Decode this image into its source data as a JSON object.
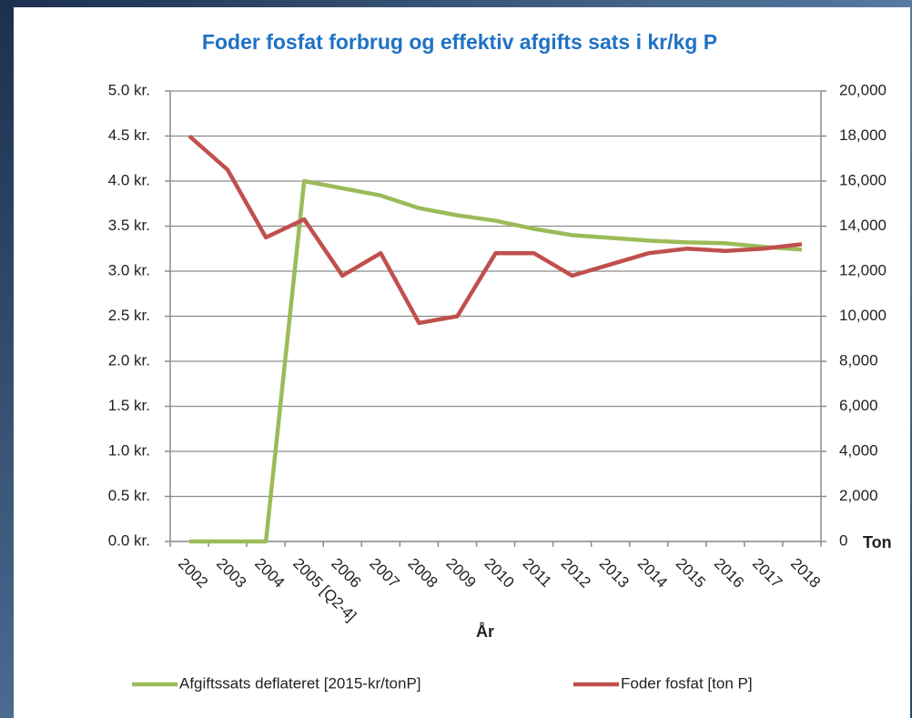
{
  "chart_data": {
    "type": "line",
    "title": "Foder fosfat forbrug og effektiv afgifts sats i kr/kg P",
    "x_label": "År",
    "y2_label": "Ton",
    "categories": [
      "2002",
      "2003",
      "2004",
      "2005 [Q2-4]",
      "2006",
      "2007",
      "2008",
      "2009",
      "2010",
      "2011",
      "2012",
      "2013",
      "2014",
      "2015",
      "2016",
      "2017",
      "2018"
    ],
    "series": [
      {
        "name": "Afgiftssats deflateret [2015-kr/tonP]",
        "color": "#9bbb59",
        "axis": "y",
        "values": [
          0,
          0,
          0,
          4.0,
          3.92,
          3.84,
          3.7,
          3.62,
          3.56,
          3.47,
          3.4,
          3.37,
          3.34,
          3.32,
          3.31,
          3.27,
          3.24
        ]
      },
      {
        "name": "Foder fosfat [ton P]",
        "color": "#c0504d",
        "axis": "y2",
        "values": [
          18000,
          16500,
          13500,
          14300,
          11800,
          12800,
          9700,
          10000,
          12800,
          12800,
          11800,
          12300,
          12800,
          13000,
          12900,
          13000,
          13200
        ]
      }
    ],
    "ylim": [
      0,
      5
    ],
    "yticks": [
      {
        "value": 0,
        "label": "0.0 kr."
      },
      {
        "value": 0.5,
        "label": "0.5 kr."
      },
      {
        "value": 1,
        "label": "1.0 kr."
      },
      {
        "value": 1.5,
        "label": "1.5 kr."
      },
      {
        "value": 2,
        "label": "2.0 kr."
      },
      {
        "value": 2.5,
        "label": "2.5 kr."
      },
      {
        "value": 3,
        "label": "3.0 kr."
      },
      {
        "value": 3.5,
        "label": "3.5 kr."
      },
      {
        "value": 4,
        "label": "4.0 kr."
      },
      {
        "value": 4.5,
        "label": "4.5 kr."
      },
      {
        "value": 5,
        "label": "5.0 kr."
      }
    ],
    "y2lim": [
      0,
      20000
    ],
    "y2ticks": [
      0,
      {
        "value": 2000,
        "label": "2,000"
      },
      {
        "value": 4000,
        "label": "4,000"
      },
      {
        "value": 6000,
        "label": "6,000"
      },
      {
        "value": 8000,
        "label": "8,000"
      },
      {
        "value": 10000,
        "label": "10,000"
      },
      {
        "value": 12000,
        "label": "12,000"
      },
      {
        "value": 14000,
        "label": "14,000"
      },
      {
        "value": 16000,
        "label": "16,000"
      },
      {
        "value": 18000,
        "label": "18,000"
      },
      {
        "value": 20000,
        "label": "20,000"
      }
    ],
    "grid": true,
    "legend": "bottom"
  }
}
